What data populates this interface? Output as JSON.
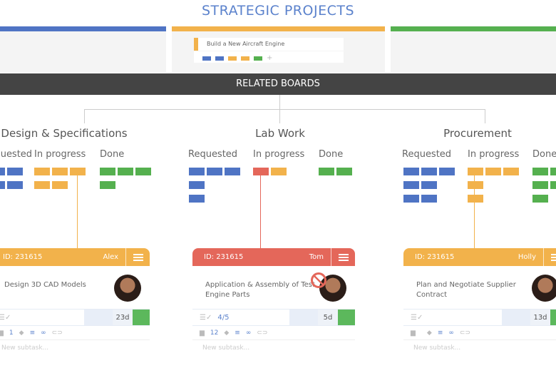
{
  "title": "STRATEGIC PROJECTS",
  "project_card": {
    "title": "Build a New Aircraft Engine",
    "chips": [
      "#4f74c4",
      "#4f74c4",
      "#f2b24b",
      "#f2b24b",
      "#55b04f"
    ],
    "add": "+"
  },
  "related_boards": "RELATED BOARDS",
  "colors": {
    "blue": "#4f74c4",
    "orange": "#f2b24b",
    "green": "#55b04f",
    "red": "#e4675a"
  },
  "boards": [
    {
      "title": "Design & Specifications",
      "columns": [
        "Requested",
        "In progress",
        "Done"
      ],
      "card": {
        "id": "ID: 231615",
        "owner": "Alex",
        "header_color": "#f2b24b",
        "task": "Design 3D CAD Models",
        "checklist": "",
        "days": "23d",
        "comments": "1",
        "new_subtask": "New subtask...",
        "blocked": false
      }
    },
    {
      "title": "Lab Work",
      "columns": [
        "Requested",
        "In progress",
        "Done"
      ],
      "card": {
        "id": "ID: 231615",
        "owner": "Tom",
        "header_color": "#e4675a",
        "task": "Application & Assembly of Test Engine Parts",
        "checklist": "4/5",
        "days": "5d",
        "comments": "12",
        "new_subtask": "New subtask...",
        "blocked": true
      }
    },
    {
      "title": "Procurement",
      "columns": [
        "Requested",
        "In progress",
        "Done"
      ],
      "card": {
        "id": "ID: 231615",
        "owner": "Holly",
        "header_color": "#f2b24b",
        "task": "Plan and Negotiate Supplier Contract",
        "checklist": "",
        "days": "13d",
        "comments": "",
        "new_subtask": "New subtask...",
        "blocked": false
      }
    }
  ]
}
